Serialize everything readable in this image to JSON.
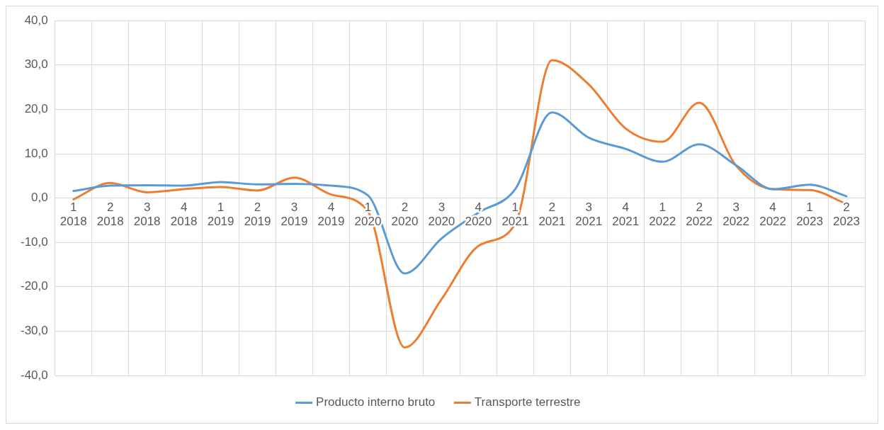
{
  "chart_data": {
    "type": "line",
    "categories": [
      "1\n2018",
      "2\n2018",
      "3\n2018",
      "4\n2018",
      "1\n2019",
      "2\n2019",
      "3\n2019",
      "4\n2019",
      "1\n2020",
      "2\n2020",
      "3\n2020",
      "4\n2020",
      "1\n2021",
      "2\n2021",
      "3\n2021",
      "4\n2021",
      "1\n2022",
      "2\n2022",
      "3\n2022",
      "4\n2022",
      "1\n2023",
      "2\n2023"
    ],
    "series": [
      {
        "name": "Producto interno bruto",
        "color": "#5b9bd5",
        "values": [
          1.6,
          2.8,
          2.9,
          2.8,
          3.6,
          3.1,
          3.2,
          2.8,
          0.6,
          -17.0,
          -9.1,
          -3.3,
          2.0,
          19.3,
          13.6,
          11.1,
          8.2,
          12.1,
          7.4,
          2.0,
          3.0,
          0.4
        ]
      },
      {
        "name": "Transporte terrestre",
        "color": "#ed7d31",
        "values": [
          -0.3,
          3.4,
          1.3,
          2.0,
          2.5,
          1.7,
          4.6,
          0.8,
          -3.0,
          -33.7,
          -22.8,
          -10.8,
          -5.8,
          31.1,
          25.6,
          15.7,
          12.7,
          21.5,
          7.3,
          2.0,
          1.8,
          -1.3
        ]
      }
    ],
    "ylim": [
      -40,
      40
    ],
    "yticks": [
      {
        "value": -40,
        "label": "-40,0"
      },
      {
        "value": -30,
        "label": "-30,0"
      },
      {
        "value": -20,
        "label": "-20,0"
      },
      {
        "value": -10,
        "label": "-10,0"
      },
      {
        "value": 0,
        "label": "0,0"
      },
      {
        "value": 10,
        "label": "10,0"
      },
      {
        "value": 20,
        "label": "20,0"
      },
      {
        "value": 30,
        "label": "30,0"
      },
      {
        "value": 40,
        "label": "40,0"
      }
    ],
    "grid": true,
    "legend": "bottom",
    "marker": "none",
    "line_style": "solid"
  }
}
